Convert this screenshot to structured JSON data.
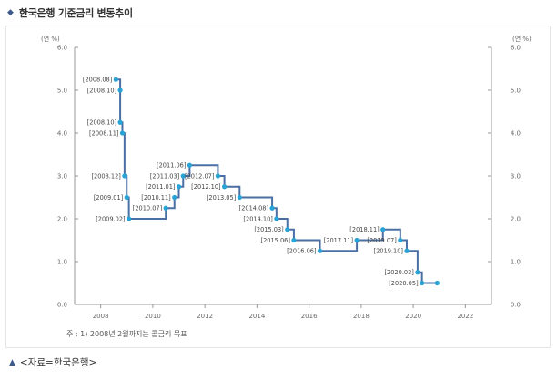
{
  "header": {
    "title": "한국은행 기준금리 변동추이"
  },
  "footer": {
    "source": "<자료=한국은행>"
  },
  "colors": {
    "line": "#4a6fa5",
    "marker": "#27a3d6",
    "accent": "#3d5a8a"
  },
  "chart_data": {
    "type": "line",
    "title": "한국은행 기준금리 변동추이",
    "ylabel_left": "(연 %)",
    "ylabel_right": "(연 %)",
    "ylim": [
      0,
      6
    ],
    "yticks": [
      "0.0",
      "1.0",
      "2.0",
      "3.0",
      "4.0",
      "5.0",
      "6.0"
    ],
    "xlim": [
      2007,
      2023
    ],
    "xticks": [
      "2008",
      "2010",
      "2012",
      "2014",
      "2016",
      "2018",
      "2020",
      "2022"
    ],
    "grid": false,
    "note": "주 : 1) 2008년 2월까지는 콜금리 목표",
    "series": [
      {
        "points": [
          {
            "x": "2008.08",
            "y": 5.25,
            "label": "[2008.08]"
          },
          {
            "x": "2008.10",
            "y": 5.0,
            "label": "[2008.10]"
          },
          {
            "x": "2008.10",
            "y": 4.25,
            "label": "[2008.10]"
          },
          {
            "x": "2008.11",
            "y": 4.0,
            "label": "[2008.11]"
          },
          {
            "x": "2008.12",
            "y": 3.0,
            "label": "[2008.12]"
          },
          {
            "x": "2009.01",
            "y": 2.5,
            "label": "[2009.01]"
          },
          {
            "x": "2009.02",
            "y": 2.0,
            "label": "[2009.02]"
          },
          {
            "x": "2010.07",
            "y": 2.25,
            "label": "[2010.07]"
          },
          {
            "x": "2010.11",
            "y": 2.5,
            "label": "[2010.11]"
          },
          {
            "x": "2011.01",
            "y": 2.75,
            "label": "[2011.01]"
          },
          {
            "x": "2011.03",
            "y": 3.0,
            "label": "[2011.03]"
          },
          {
            "x": "2011.06",
            "y": 3.25,
            "label": "[2011.06]"
          },
          {
            "x": "2012.07",
            "y": 3.0,
            "label": "[2012.07]"
          },
          {
            "x": "2012.10",
            "y": 2.75,
            "label": "[2012.10]"
          },
          {
            "x": "2013.05",
            "y": 2.5,
            "label": "[2013.05]"
          },
          {
            "x": "2014.08",
            "y": 2.25,
            "label": "[2014.08]"
          },
          {
            "x": "2014.10",
            "y": 2.0,
            "label": "[2014.10]"
          },
          {
            "x": "2015.03",
            "y": 1.75,
            "label": "[2015.03]"
          },
          {
            "x": "2015.06",
            "y": 1.5,
            "label": "[2015.06]"
          },
          {
            "x": "2016.06",
            "y": 1.25,
            "label": "[2016.06]"
          },
          {
            "x": "2017.11",
            "y": 1.5,
            "label": "[2017.11]"
          },
          {
            "x": "2018.11",
            "y": 1.75,
            "label": "[2018.11]"
          },
          {
            "x": "2019.07",
            "y": 1.5,
            "label": "[2019.07]"
          },
          {
            "x": "2019.10",
            "y": 1.25,
            "label": "[2019.10]"
          },
          {
            "x": "2020.03",
            "y": 0.75,
            "label": "[2020.03]"
          },
          {
            "x": "2020.05",
            "y": 0.5,
            "label": "[2020.05]"
          },
          {
            "x": "2020.12",
            "y": 0.5,
            "label": ""
          }
        ]
      }
    ]
  }
}
